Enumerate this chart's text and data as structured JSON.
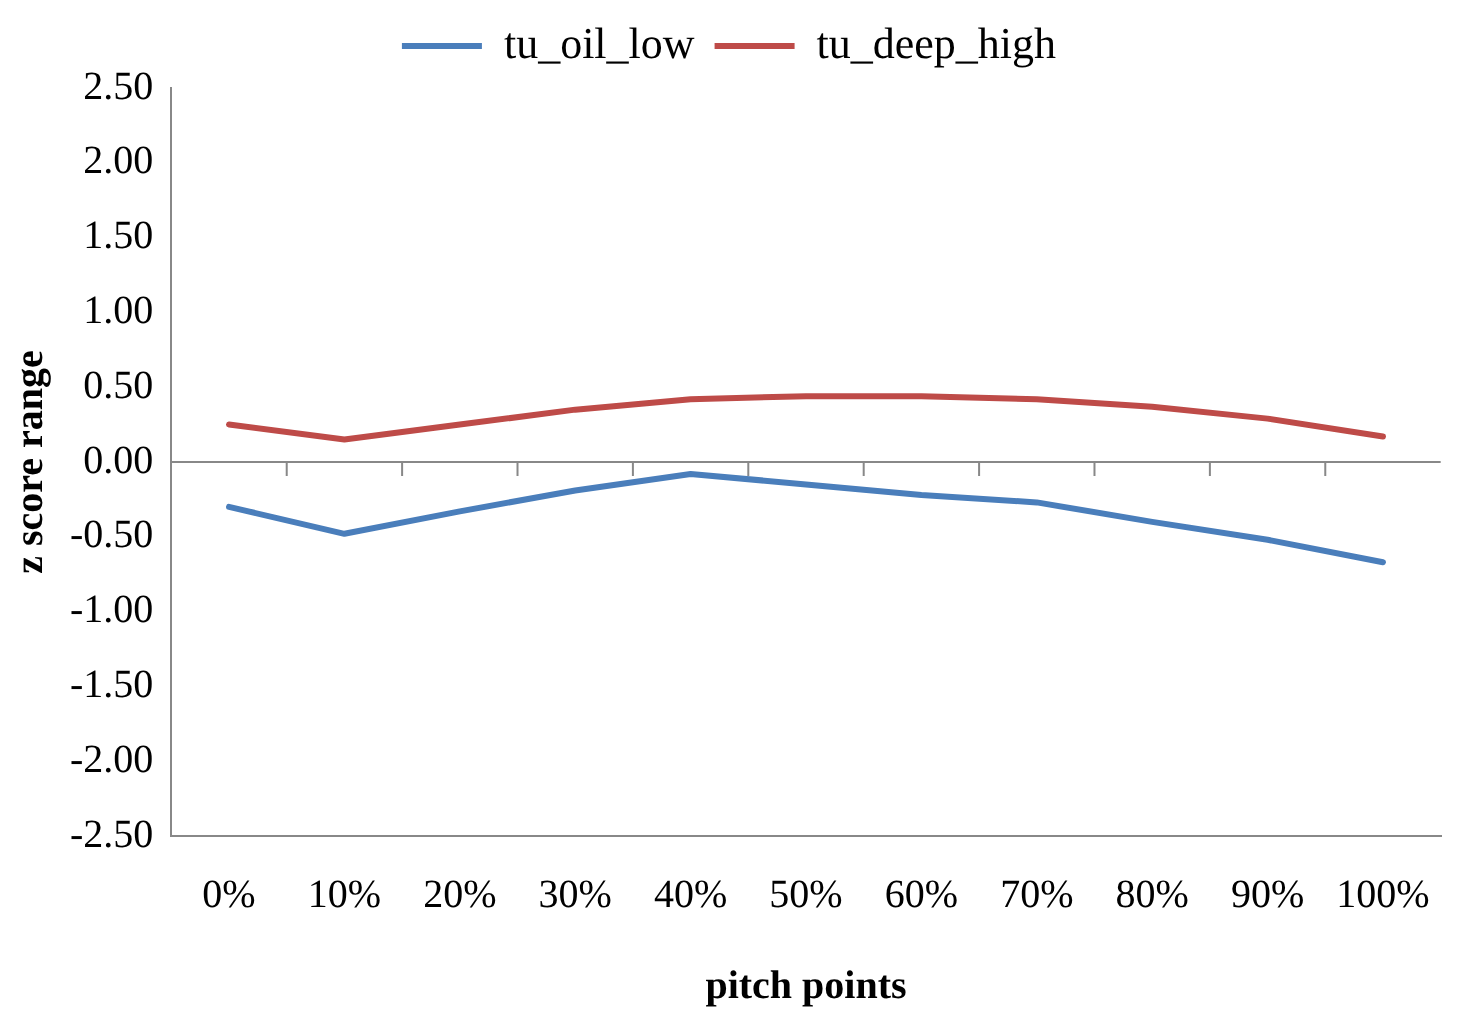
{
  "chart_data": {
    "type": "line",
    "xlabel": "pitch points",
    "ylabel": "z score range",
    "categories": [
      "0%",
      "10%",
      "20%",
      "30%",
      "40%",
      "50%",
      "60%",
      "70%",
      "80%",
      "90%",
      "100%"
    ],
    "series": [
      {
        "name": "tu_oil_low",
        "color": "#4a7ebb",
        "values": [
          -0.3,
          -0.48,
          -0.33,
          -0.19,
          -0.08,
          -0.15,
          -0.22,
          -0.27,
          -0.4,
          -0.52,
          -0.67
        ]
      },
      {
        "name": "tu_deep_high",
        "color": "#be4b48",
        "values": [
          0.25,
          0.15,
          0.25,
          0.35,
          0.42,
          0.44,
          0.44,
          0.42,
          0.37,
          0.29,
          0.17
        ]
      }
    ],
    "ylim": [
      -2.5,
      2.5
    ],
    "yticks": [
      {
        "value": -2.5,
        "label": "-2.50"
      },
      {
        "value": -2,
        "label": "-2.00"
      },
      {
        "value": -1.5,
        "label": "-1.50"
      },
      {
        "value": -1,
        "label": "-1.00"
      },
      {
        "value": -0.5,
        "label": "-0.50"
      },
      {
        "value": 0,
        "label": "0.00"
      },
      {
        "value": 0.5,
        "label": "0.50"
      },
      {
        "value": 1,
        "label": "1.00"
      },
      {
        "value": 1.5,
        "label": "1.50"
      },
      {
        "value": 2,
        "label": "2.00"
      },
      {
        "value": 2.5,
        "label": "2.50"
      }
    ],
    "legend": "top",
    "marker": "none",
    "line_style": "solid"
  }
}
